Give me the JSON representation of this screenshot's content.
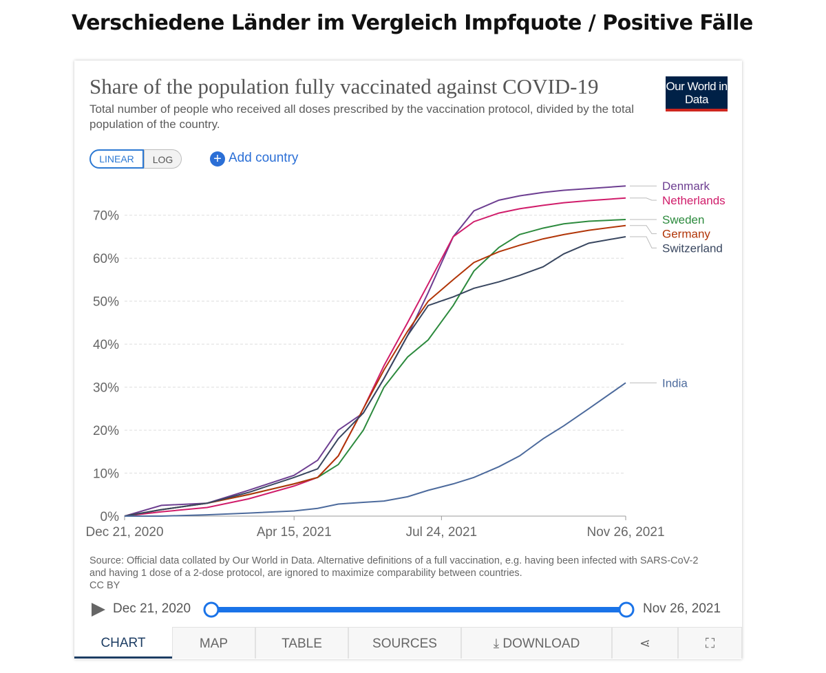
{
  "page_heading": "Verschiedene Länder im Vergleich Impfquote / Positive Fälle",
  "logo": "Our World in Data",
  "controls": {
    "scale_buttons": [
      "LINEAR",
      "LOG"
    ],
    "add_country": "Add country"
  },
  "source_note": "Source: Official data collated by Our World in Data. Alternative definitions of a full vaccination, e.g. having been infected with SARS-CoV-2 and having 1 dose of a 2-dose protocol, are ignored to maximize comparability between countries.",
  "license": "CC BY",
  "tabs": [
    "CHART",
    "MAP",
    "TABLE",
    "SOURCES",
    "DOWNLOAD"
  ],
  "chart_data": {
    "type": "line",
    "title": "Share of the population fully vaccinated against COVID-19",
    "subtitle": "Total number of people who received all doses prescribed by the vaccination protocol, divided by the total population of the country.",
    "x": [
      "2020-12-21",
      "2021-01-15",
      "2021-02-15",
      "2021-03-15",
      "2021-04-15",
      "2021-05-01",
      "2021-05-15",
      "2021-06-01",
      "2021-06-15",
      "2021-07-01",
      "2021-07-15",
      "2021-08-01",
      "2021-08-15",
      "2021-09-01",
      "2021-09-15",
      "2021-10-01",
      "2021-10-15",
      "2021-11-01",
      "2021-11-26"
    ],
    "series": [
      {
        "name": "Denmark",
        "color": "#6d3e91",
        "values": [
          0,
          2.5,
          3,
          6,
          9.5,
          13,
          20,
          24,
          32,
          42,
          52,
          65,
          71,
          73.5,
          74.5,
          75.3,
          75.8,
          76.2,
          76.8
        ]
      },
      {
        "name": "Netherlands",
        "color": "#d01c6a",
        "values": [
          0,
          1,
          2,
          4,
          7,
          9,
          14,
          25,
          35,
          45,
          54,
          65,
          68.5,
          70.5,
          71.5,
          72.3,
          72.9,
          73.4,
          74
        ]
      },
      {
        "name": "Sweden",
        "color": "#2c8a3d",
        "values": [
          0,
          1.5,
          3,
          5,
          7.5,
          9,
          12,
          20,
          30,
          37,
          41,
          49,
          57,
          62.5,
          65.5,
          67,
          68,
          68.6,
          69
        ]
      },
      {
        "name": "Germany",
        "color": "#b13507",
        "values": [
          0,
          1.5,
          3,
          5,
          7.5,
          9,
          14,
          25,
          34,
          43,
          50,
          55,
          59,
          61.5,
          63,
          64.5,
          65.5,
          66.5,
          67.6
        ]
      },
      {
        "name": "Switzerland",
        "color": "#38465f",
        "values": [
          0,
          1.5,
          3,
          5.5,
          9,
          11,
          18,
          24,
          32,
          42,
          49,
          51,
          53,
          54.5,
          56,
          58,
          61,
          63.5,
          65
        ]
      },
      {
        "name": "India",
        "color": "#4c6a9c",
        "values": [
          0,
          0,
          0.3,
          0.7,
          1.2,
          1.8,
          2.8,
          3.2,
          3.5,
          4.5,
          6,
          7.5,
          9,
          11.5,
          14,
          18,
          21,
          25,
          31
        ]
      }
    ],
    "xlim": [
      "2020-12-21",
      "2021-11-26"
    ],
    "xticks": [
      {
        "value": "2020-12-21",
        "label": "Dec 21, 2020"
      },
      {
        "value": "2021-04-15",
        "label": "Apr 15, 2021"
      },
      {
        "value": "2021-07-24",
        "label": "Jul 24, 2021"
      },
      {
        "value": "2021-11-26",
        "label": "Nov 26, 2021"
      }
    ],
    "ylim": [
      0,
      77
    ],
    "yticks": [
      {
        "value": 0,
        "label": "0%"
      },
      {
        "value": 10,
        "label": "10%"
      },
      {
        "value": 20,
        "label": "20%"
      },
      {
        "value": 30,
        "label": "30%"
      },
      {
        "value": 40,
        "label": "40%"
      },
      {
        "value": 50,
        "label": "50%"
      },
      {
        "value": 60,
        "label": "60%"
      },
      {
        "value": 70,
        "label": "70%"
      }
    ],
    "grid": true
  }
}
